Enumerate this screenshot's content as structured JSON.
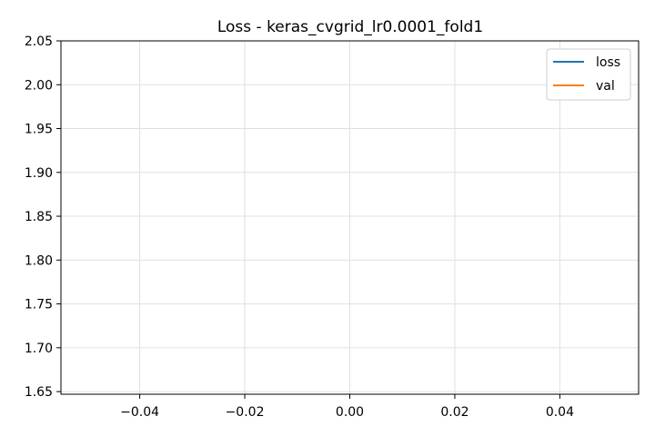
{
  "chart_data": {
    "type": "line",
    "title": "Loss - keras_cvgrid_lr0.0001_fold1",
    "xlabel": "",
    "ylabel": "",
    "xlim": [
      -0.055,
      0.055
    ],
    "ylim": [
      1.647,
      2.05
    ],
    "x_ticks": [
      -0.04,
      -0.02,
      0.0,
      0.02,
      0.04
    ],
    "x_tick_labels": [
      "−0.04",
      "−0.02",
      "0.00",
      "0.02",
      "0.04"
    ],
    "y_ticks": [
      1.65,
      1.7,
      1.75,
      1.8,
      1.85,
      1.9,
      1.95,
      2.0,
      2.05
    ],
    "y_tick_labels": [
      "1.65",
      "1.70",
      "1.75",
      "1.80",
      "1.85",
      "1.90",
      "1.95",
      "2.00",
      "2.05"
    ],
    "grid": true,
    "legend_position": "top-right",
    "series": [
      {
        "name": "loss",
        "color": "#1f77b4",
        "x": [],
        "y": []
      },
      {
        "name": "val",
        "color": "#ff7f0e",
        "x": [],
        "y": []
      }
    ]
  }
}
